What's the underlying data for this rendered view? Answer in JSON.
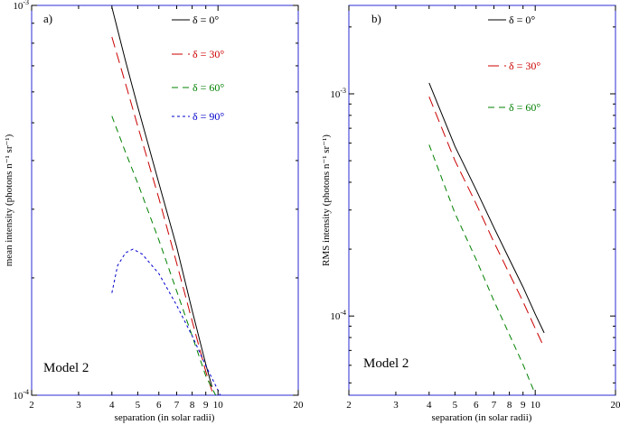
{
  "chart_data": [
    {
      "type": "line",
      "panel_label": "a)",
      "annotation": "Model 2",
      "xlabel": "separation (in solar radii)",
      "ylabel": "mean intensity (photons n⁻¹ sr⁻¹)",
      "xscale": "log",
      "yscale": "log",
      "xlim": [
        2,
        20
      ],
      "ylim": [
        0.0001,
        0.001
      ],
      "x_ticks": [
        2,
        3,
        4,
        5,
        6,
        7,
        8,
        9,
        10,
        20
      ],
      "y_ticks": [
        {
          "value": 0.0001,
          "label_base": "10",
          "label_exp": "-4"
        },
        {
          "value": 0.001,
          "label_base": "10",
          "label_exp": "-3"
        }
      ],
      "legend_position": "top-right",
      "series": [
        {
          "name": "δ = 0°",
          "color": "#000000",
          "dash": "solid",
          "x": [
            4.0,
            4.5,
            5.0,
            6.0,
            7.0,
            8.0,
            9.0,
            9.5
          ],
          "y": [
            0.00099,
            0.00072,
            0.00055,
            0.00035,
            0.00024,
            0.000165,
            0.00012,
            0.000105
          ]
        },
        {
          "name": "δ = 30°",
          "color": "#cc0000",
          "dash": "long",
          "x": [
            4.0,
            4.5,
            5.0,
            6.0,
            7.0,
            8.0,
            9.0,
            9.6
          ],
          "y": [
            0.00083,
            0.00063,
            0.00049,
            0.00032,
            0.000218,
            0.000155,
            0.000115,
            0.0001
          ]
        },
        {
          "name": "δ = 60°",
          "color": "#008000",
          "dash": "medium",
          "x": [
            4.0,
            4.5,
            5.0,
            6.0,
            7.0,
            8.0,
            9.0,
            9.8
          ],
          "y": [
            0.00052,
            0.00042,
            0.00035,
            0.00025,
            0.000185,
            0.000142,
            0.000112,
            0.0001
          ]
        },
        {
          "name": "δ = 90°",
          "color": "#0000cc",
          "dash": "short",
          "x": [
            4.0,
            4.2,
            4.5,
            4.8,
            5.2,
            6.0,
            7.0,
            8.0,
            9.0,
            10.0,
            10.2
          ],
          "y": [
            0.000183,
            0.000215,
            0.000232,
            0.000237,
            0.00023,
            0.000205,
            0.00017,
            0.000142,
            0.000119,
            0.000103,
            0.0001
          ]
        }
      ]
    },
    {
      "type": "line",
      "panel_label": "b)",
      "annotation": "Model 2",
      "xlabel": "separation (in solar radii)",
      "ylabel": "RMS intensity (photons n⁻¹ sr⁻¹)",
      "xscale": "log",
      "yscale": "log",
      "xlim": [
        2,
        20
      ],
      "ylim": [
        4.4e-05,
        0.0025
      ],
      "x_ticks": [
        2,
        3,
        4,
        5,
        6,
        7,
        8,
        9,
        10,
        20
      ],
      "y_ticks": [
        {
          "value": 0.0001,
          "label_base": "10",
          "label_exp": "-4"
        },
        {
          "value": 0.001,
          "label_base": "10",
          "label_exp": "-3"
        }
      ],
      "legend_position": "top-right",
      "series": [
        {
          "name": "δ = 0°",
          "color": "#000000",
          "dash": "solid",
          "x": [
            4.0,
            5.0,
            6.0,
            7.0,
            8.0,
            9.0,
            10.0,
            10.8
          ],
          "y": [
            0.00112,
            0.00058,
            0.00037,
            0.00025,
            0.00018,
            0.000135,
            0.000102,
            8.4e-05
          ]
        },
        {
          "name": "δ = 30°",
          "color": "#cc0000",
          "dash": "long",
          "x": [
            4.0,
            5.0,
            6.0,
            7.0,
            8.0,
            9.0,
            10.0,
            10.8
          ],
          "y": [
            0.00097,
            0.0005,
            0.00032,
            0.000215,
            0.000155,
            0.000116,
            8.8e-05,
            7.2e-05
          ]
        },
        {
          "name": "δ = 60°",
          "color": "#008000",
          "dash": "medium",
          "x": [
            4.0,
            5.0,
            6.0,
            7.0,
            8.0,
            9.0,
            10.0
          ],
          "y": [
            0.00059,
            0.00029,
            0.00018,
            0.000117,
            8.25e-05,
            6.05e-05,
            4.45e-05
          ]
        }
      ]
    }
  ]
}
